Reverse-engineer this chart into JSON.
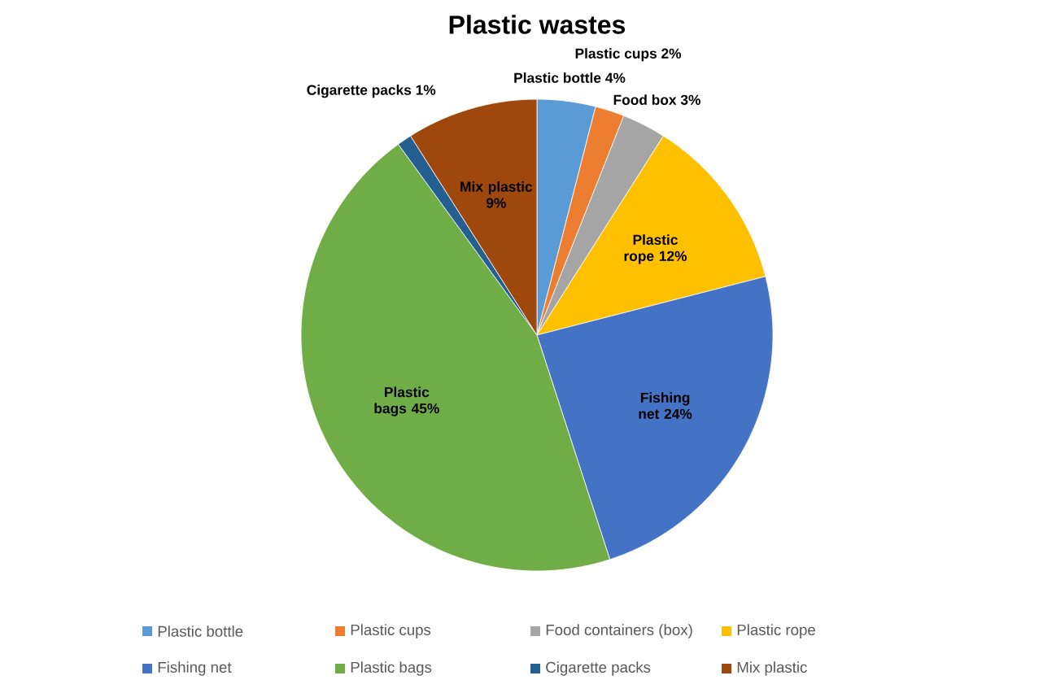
{
  "chart_data": {
    "type": "pie",
    "title": "Plastic wastes",
    "categories": [
      "Plastic bottle",
      "Plastic cups",
      "Food containers (box)",
      "Plastic rope",
      "Fishing net",
      "Plastic bags",
      "Cigarette packs",
      "Mix plastic"
    ],
    "values": [
      4,
      2,
      3,
      12,
      24,
      45,
      1,
      9
    ],
    "colors": [
      "#5b9bd5",
      "#ed7d31",
      "#a5a5a5",
      "#ffc000",
      "#4472c4",
      "#70ad47",
      "#255e91",
      "#9e480e"
    ],
    "value_labels": [
      "Plastic bottle 4%",
      "Plastic cups 2%",
      "Food box 3%",
      "Plastic rope 12%",
      "Fishing net 24%",
      "Plastic bags 45%",
      "Cigarette packs 1%",
      "Mix plastic 9%"
    ],
    "legend": "bottom"
  }
}
